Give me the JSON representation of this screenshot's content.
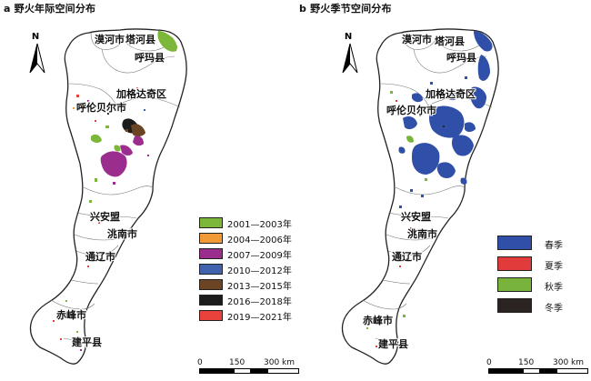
{
  "panel_a": {
    "title": "a 野火年际空间分布",
    "legend": [
      {
        "label": "2001—2003年",
        "color": "#7db73a"
      },
      {
        "label": "2004—2006年",
        "color": "#f29a38"
      },
      {
        "label": "2007—2009年",
        "color": "#9b2d8f"
      },
      {
        "label": "2010—2012年",
        "color": "#3f63ad"
      },
      {
        "label": "2013—2015年",
        "color": "#6b4424"
      },
      {
        "label": "2016—2018年",
        "color": "#1c1c1c"
      },
      {
        "label": "2019—2021年",
        "color": "#e8423a"
      }
    ],
    "scale": {
      "labels": [
        "0",
        "150",
        "300 km"
      ]
    }
  },
  "panel_b": {
    "title": "b 野火季节空间分布",
    "legend": [
      {
        "label": "春季",
        "color": "#2f4fa8"
      },
      {
        "label": "夏季",
        "color": "#e13b3b"
      },
      {
        "label": "秋季",
        "color": "#78b33b"
      },
      {
        "label": "冬季",
        "color": "#2b2222"
      }
    ],
    "scale": {
      "labels": [
        "0",
        "150",
        "300 km"
      ]
    }
  },
  "north_label": "N",
  "places": {
    "mohe": "漠河市",
    "tahe": "塔河县",
    "huma": "呼玛县",
    "jiagedaqi": "加格达奇区",
    "hulunbuir": "呼伦贝尔市",
    "xinganmeng_a": "兴安盟",
    "xinganmeng_b": "兴安盟",
    "taonan": "洮南市",
    "tongliao": "通辽市",
    "chifeng": "赤峰市",
    "jianping": "建平县"
  }
}
